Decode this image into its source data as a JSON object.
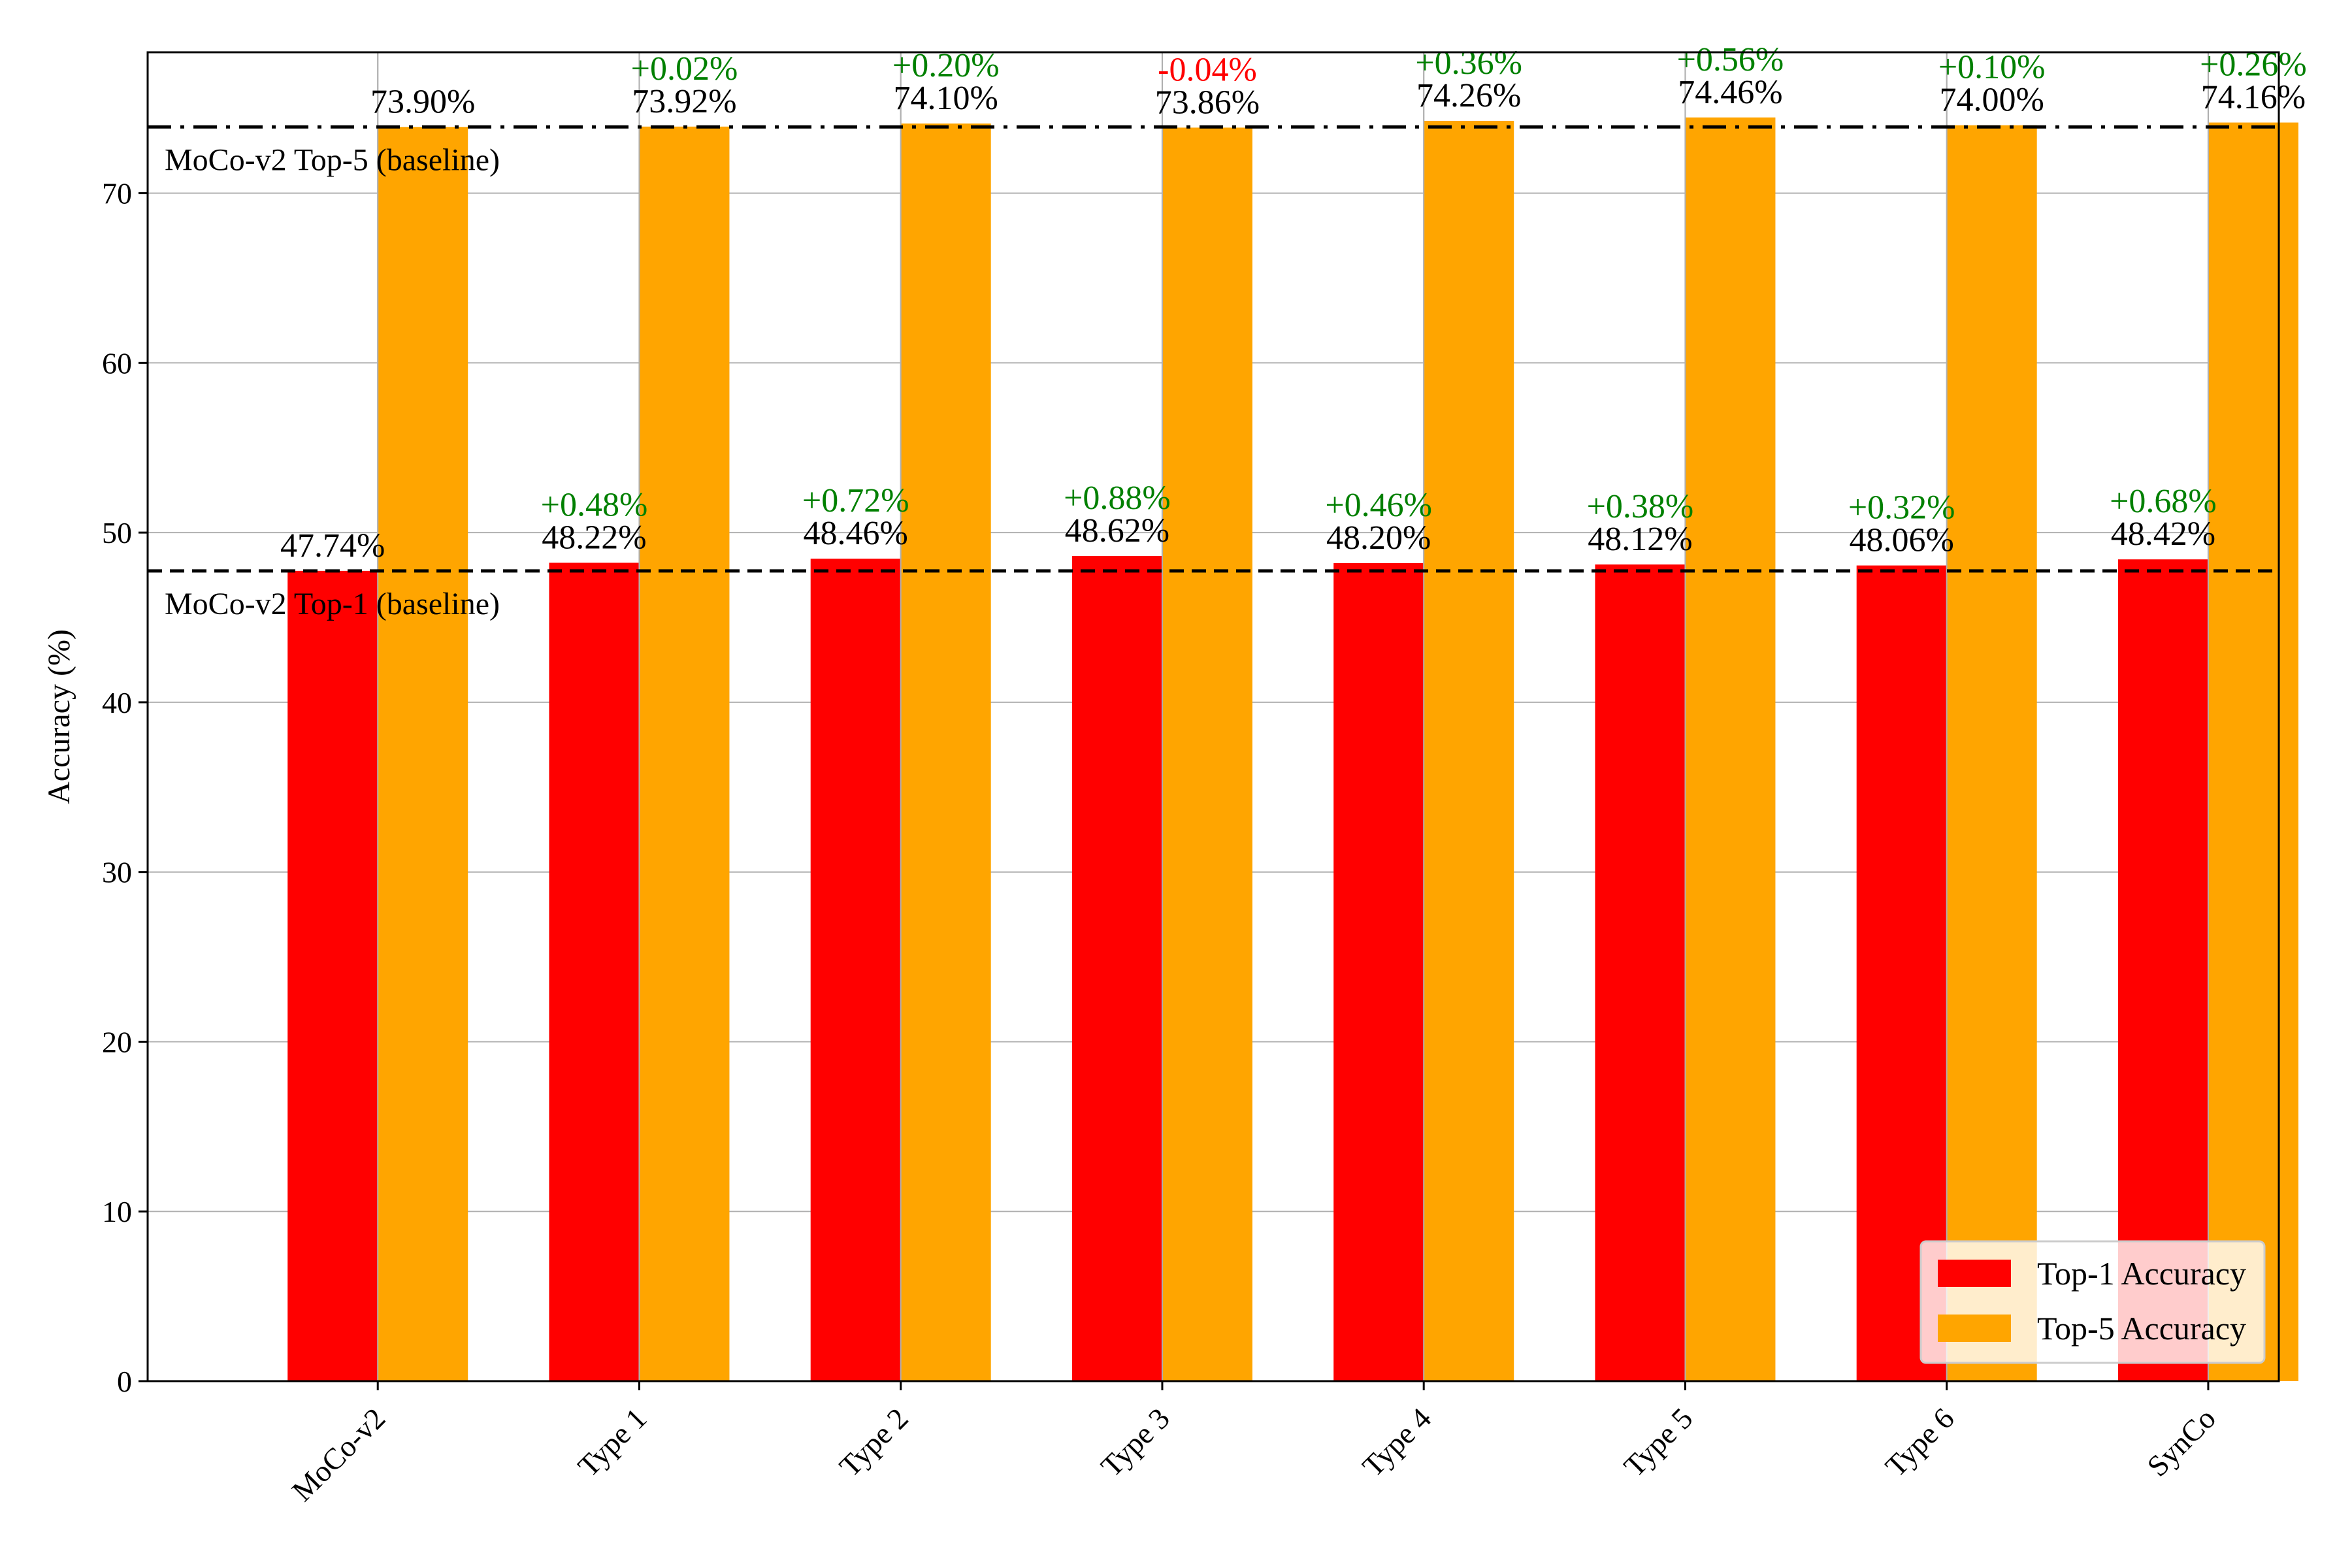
{
  "chart_data": {
    "type": "bar",
    "title": "",
    "xlabel": "",
    "ylabel": "Accuracy (%)",
    "ylim": [
      0,
      78.3
    ],
    "yticks": [
      0,
      10,
      20,
      30,
      40,
      50,
      60,
      70
    ],
    "grid": true,
    "categories": [
      "MoCo-v2",
      "Type 1",
      "Type 2",
      "Type 3",
      "Type 4",
      "Type 5",
      "Type 6",
      "SynCo"
    ],
    "series": [
      {
        "name": "Top-1 Accuracy",
        "color": "#ff0000",
        "values": [
          47.74,
          48.22,
          48.46,
          48.62,
          48.2,
          48.12,
          48.06,
          48.42
        ],
        "labels": [
          "47.74%",
          "48.22%",
          "48.46%",
          "48.62%",
          "48.20%",
          "48.12%",
          "48.06%",
          "48.42%"
        ],
        "deltas": [
          "",
          "+0.48%",
          "+0.72%",
          "+0.88%",
          "+0.46%",
          "+0.38%",
          "+0.32%",
          "+0.68%"
        ]
      },
      {
        "name": "Top-5 Accuracy",
        "color": "#ffa500",
        "values": [
          73.9,
          73.92,
          74.1,
          73.86,
          74.26,
          74.46,
          74.0,
          74.16
        ],
        "labels": [
          "73.90%",
          "73.92%",
          "74.10%",
          "73.86%",
          "74.26%",
          "74.46%",
          "74.00%",
          "74.16%"
        ],
        "deltas": [
          "",
          "+0.02%",
          "+0.20%",
          "-0.04%",
          "+0.36%",
          "+0.56%",
          "+0.10%",
          "+0.26%"
        ]
      }
    ],
    "baselines": [
      {
        "name": "top5-baseline",
        "value": 73.9,
        "label": "MoCo-v2 Top-5 (baseline)",
        "style": "dashdot"
      },
      {
        "name": "top1-baseline",
        "value": 47.74,
        "label": "MoCo-v2 Top-1 (baseline)",
        "style": "dashed"
      }
    ],
    "positive_color": "#008000",
    "negative_color": "#ff0000",
    "legend": {
      "position": "lower-right",
      "entries": [
        "Top-1 Accuracy",
        "Top-5 Accuracy"
      ]
    }
  }
}
